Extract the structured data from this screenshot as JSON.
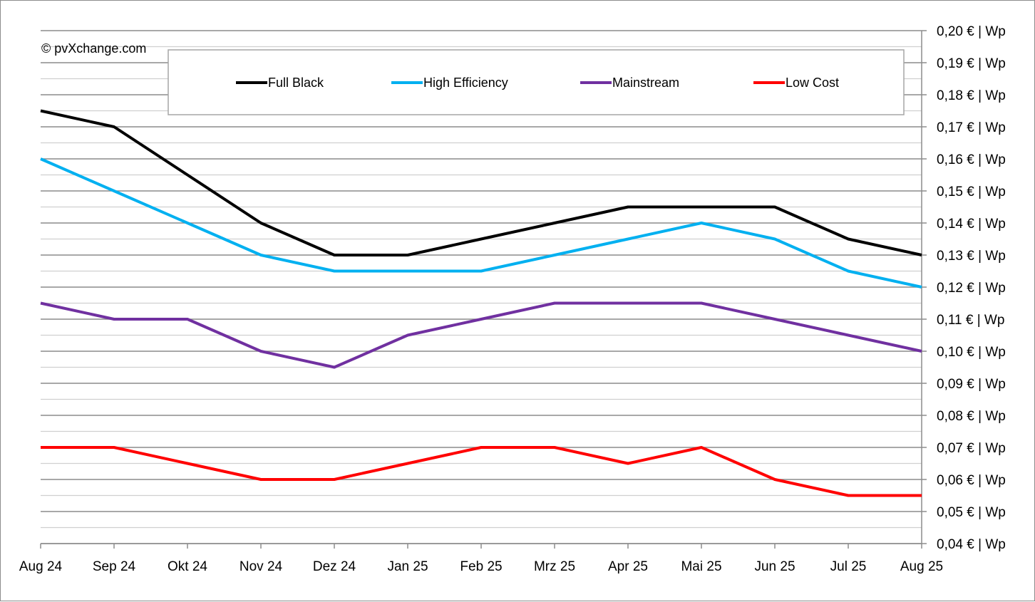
{
  "chart_data": {
    "type": "line",
    "title": "",
    "copyright": "© pvXchange.com",
    "xlabel": "",
    "ylabel": "",
    "ylim": [
      0.04,
      0.2
    ],
    "y_major_step": 0.01,
    "y_minor_step": 0.005,
    "y_axis_position": "right",
    "y_tick_suffix": " € | Wp",
    "grid": true,
    "legend_position": "top",
    "categories": [
      "Aug 24",
      "Sep 24",
      "Okt 24",
      "Nov 24",
      "Dez 24",
      "Jan 25",
      "Feb 25",
      "Mrz 25",
      "Apr 25",
      "Mai 25",
      "Jun 25",
      "Jul 25",
      "Aug 25"
    ],
    "y_tick_labels": [
      "0,20 € | Wp",
      "0,19 € | Wp",
      "0,18 € | Wp",
      "0,17 € | Wp",
      "0,16 € | Wp",
      "0,15 € | Wp",
      "0,14 € | Wp",
      "0,13 € | Wp",
      "0,12 € | Wp",
      "0,11 € | Wp",
      "0,10 € | Wp",
      "0,09 € | Wp",
      "0,08 € | Wp",
      "0,07 € | Wp",
      "0,06 € | Wp",
      "0,05 € | Wp",
      "0,04 € | Wp"
    ],
    "series": [
      {
        "name": "Full Black",
        "color": "#000000",
        "values": [
          0.175,
          0.17,
          0.155,
          0.14,
          0.13,
          0.13,
          0.135,
          0.14,
          0.145,
          0.145,
          0.145,
          0.135,
          0.13
        ]
      },
      {
        "name": "High Efficiency",
        "color": "#00b0f0",
        "values": [
          0.16,
          0.15,
          0.14,
          0.13,
          0.125,
          0.125,
          0.125,
          0.13,
          0.135,
          0.14,
          0.135,
          0.125,
          0.12
        ]
      },
      {
        "name": "Mainstream",
        "color": "#7030a0",
        "values": [
          0.115,
          0.11,
          0.11,
          0.1,
          0.095,
          0.105,
          0.11,
          0.115,
          0.115,
          0.115,
          0.11,
          0.105,
          0.1
        ]
      },
      {
        "name": "Low Cost",
        "color": "#ff0000",
        "values": [
          0.07,
          0.07,
          0.065,
          0.06,
          0.06,
          0.065,
          0.07,
          0.07,
          0.065,
          0.07,
          0.06,
          0.055,
          0.055
        ]
      }
    ]
  }
}
